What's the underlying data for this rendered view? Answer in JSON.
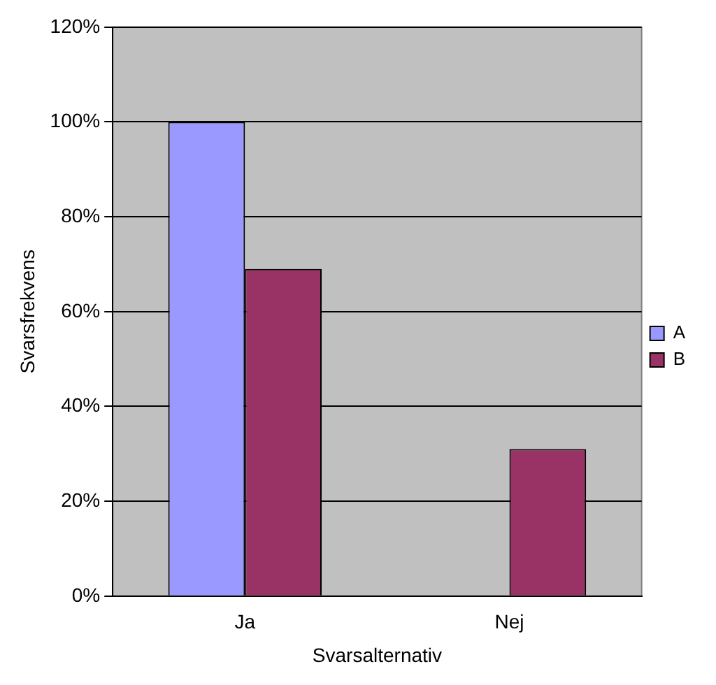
{
  "chart_data": {
    "type": "bar",
    "xlabel": "Svarsalternativ",
    "ylabel": "Svarsfrekvens",
    "categories": [
      "Ja",
      "Nej"
    ],
    "series": [
      {
        "name": "A",
        "color": "#9999ff",
        "values": [
          100,
          0
        ]
      },
      {
        "name": "B",
        "color": "#993366",
        "values": [
          69,
          31
        ]
      }
    ],
    "ylim": [
      0,
      120
    ],
    "yticks": [
      {
        "value": 0,
        "label": "0%"
      },
      {
        "value": 20,
        "label": "20%"
      },
      {
        "value": 40,
        "label": "40%"
      },
      {
        "value": 60,
        "label": "60%"
      },
      {
        "value": 80,
        "label": "80%"
      },
      {
        "value": 100,
        "label": "100%"
      },
      {
        "value": 120,
        "label": "120%"
      }
    ],
    "grid": "y",
    "legend": "right"
  }
}
